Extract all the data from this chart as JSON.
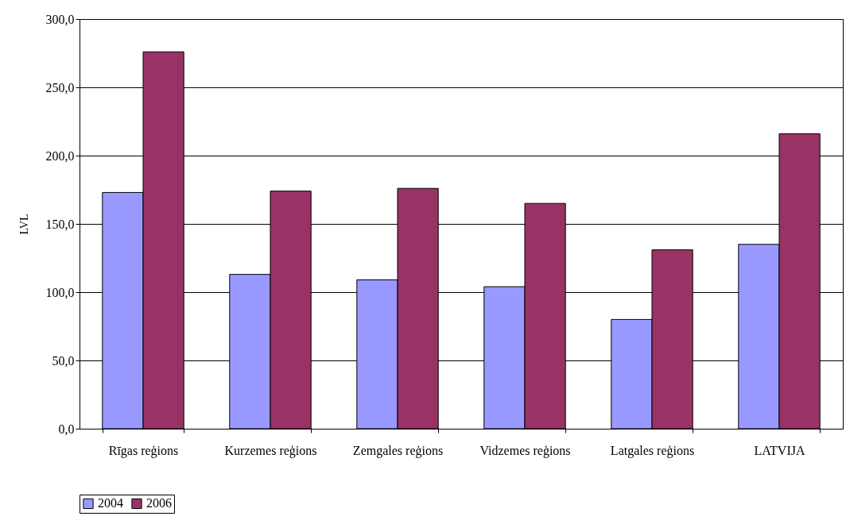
{
  "chart_data": {
    "type": "bar",
    "ylabel": "LVL",
    "categories": [
      "Rīgas reģions",
      "Kurzemes reģions",
      "Zemgales reģions",
      "Vidzemes reģions",
      "Latgales reģions",
      "LATVIJA"
    ],
    "series": [
      {
        "name": "2004",
        "color": "#9999ff",
        "values": [
          173,
          113,
          109,
          104,
          80,
          135
        ]
      },
      {
        "name": "2006",
        "color": "#993366",
        "values": [
          276,
          174,
          176,
          165,
          131,
          216
        ]
      }
    ],
    "ylim": [
      0,
      300
    ],
    "yticks": [
      {
        "value": 0,
        "label": "0,0"
      },
      {
        "value": 50,
        "label": "50,0"
      },
      {
        "value": 100,
        "label": "100,0"
      },
      {
        "value": 150,
        "label": "150,0"
      },
      {
        "value": 200,
        "label": "200,0"
      },
      {
        "value": 250,
        "label": "250,0"
      },
      {
        "value": 300,
        "label": "300,0"
      }
    ],
    "grid": "y",
    "legend": "bottom"
  }
}
